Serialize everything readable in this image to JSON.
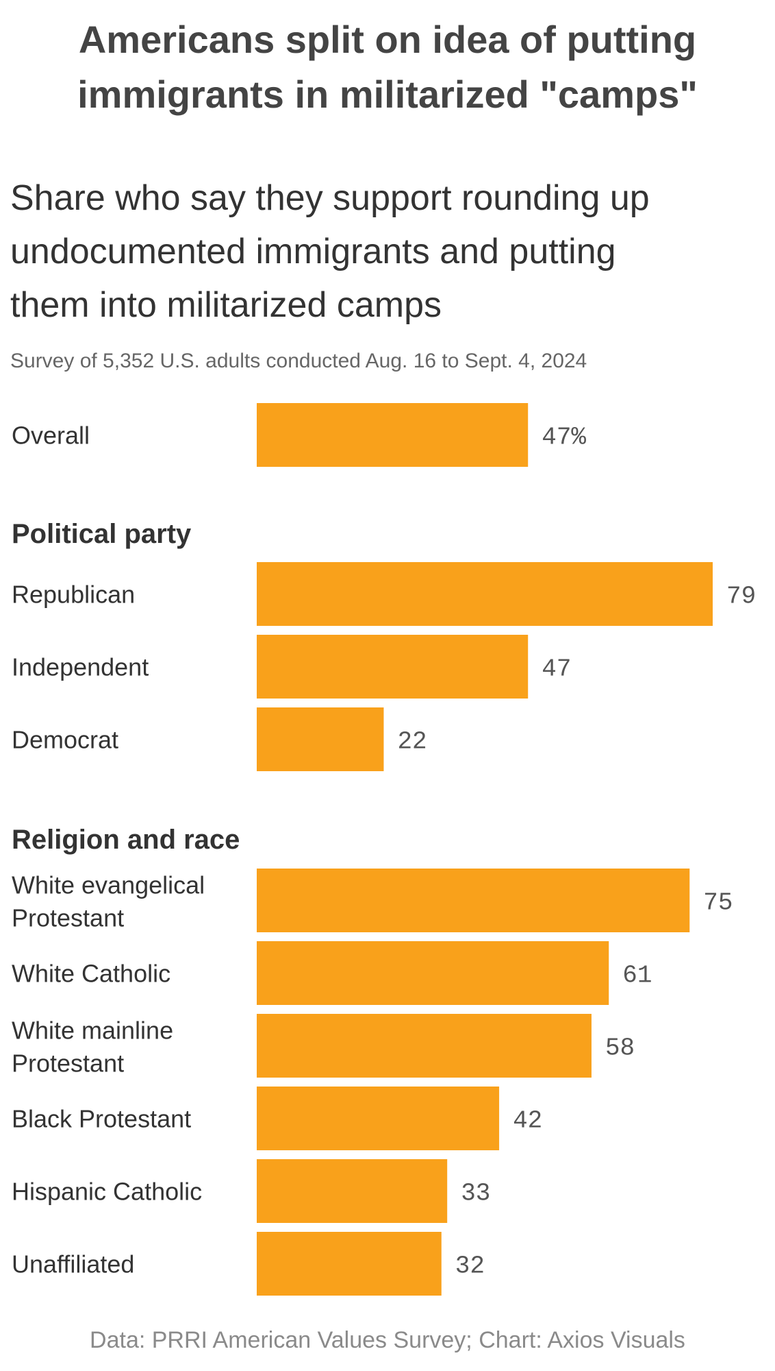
{
  "chart_data": {
    "type": "bar",
    "orientation": "horizontal",
    "title": "Americans split on idea of putting immigrants in militarized \"camps\"",
    "title_lines": [
      "Americans split on idea of putting",
      "immigrants in militarized \"camps\""
    ],
    "subtitle": "Share who say they support rounding up undocumented immigrants and putting them into militarized camps",
    "subtitle_lines": [
      "Share who say they support rounding up",
      "undocumented immigrants and putting",
      "them into militarized camps"
    ],
    "note": "Survey of 5,352 U.S. adults conducted Aug. 16 to Sept. 4, 2024",
    "source": "Data: PRRI American Values Survey; Chart: Axios Visuals",
    "xlim": [
      0,
      100
    ],
    "unit": "%",
    "bar_color": "#F9A11B",
    "groups": [
      {
        "heading": "",
        "items": [
          {
            "label": [
              "Overall"
            ],
            "value": 47,
            "display": "47%"
          }
        ]
      },
      {
        "heading": "Political party",
        "items": [
          {
            "label": [
              "Republican"
            ],
            "value": 79,
            "display": "79"
          },
          {
            "label": [
              "Independent"
            ],
            "value": 47,
            "display": "47"
          },
          {
            "label": [
              "Democrat"
            ],
            "value": 22,
            "display": "22"
          }
        ]
      },
      {
        "heading": "Religion and race",
        "items": [
          {
            "label": [
              "White evangelical",
              "Protestant"
            ],
            "value": 75,
            "display": "75"
          },
          {
            "label": [
              "White Catholic"
            ],
            "value": 61,
            "display": "61"
          },
          {
            "label": [
              "White mainline",
              "Protestant"
            ],
            "value": 58,
            "display": "58"
          },
          {
            "label": [
              "Black Protestant"
            ],
            "value": 42,
            "display": "42"
          },
          {
            "label": [
              "Hispanic Catholic"
            ],
            "value": 33,
            "display": "33"
          },
          {
            "label": [
              "Unaffiliated"
            ],
            "value": 32,
            "display": "32"
          }
        ]
      }
    ]
  }
}
